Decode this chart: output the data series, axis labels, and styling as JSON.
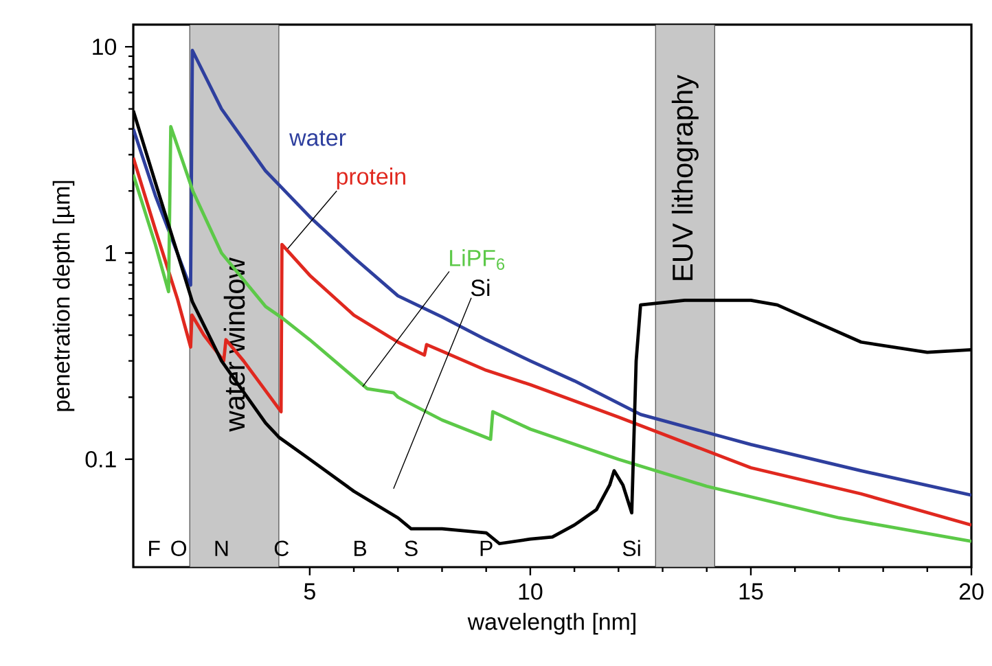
{
  "chart_data": {
    "type": "line",
    "xlabel": "wavelength [nm]",
    "ylabel": "penetration depth [µm]",
    "xlim": [
      1,
      20
    ],
    "xticks": [
      5,
      10,
      15,
      20
    ],
    "ylim": [
      0.03,
      12.8
    ],
    "yticks": [
      0.1,
      1,
      10
    ],
    "log": "y",
    "series": [
      {
        "name": "water",
        "color": "#2e3f9e",
        "x": [
          1,
          1.5,
          2.0,
          2.25,
          2.3,
          2.34,
          3,
          4,
          5,
          6,
          7,
          8,
          9,
          10,
          11,
          12.5,
          15,
          17.5,
          20
        ],
        "values": [
          4.0,
          1.9,
          1.0,
          0.72,
          0.7,
          9.6,
          5.0,
          2.5,
          1.5,
          0.95,
          0.62,
          0.49,
          0.38,
          0.3,
          0.24,
          0.165,
          0.118,
          0.088,
          0.067
        ]
      },
      {
        "name": "protein",
        "color": "#e0281f",
        "x": [
          1,
          1.5,
          2.0,
          2.3,
          2.33,
          2.6,
          3.05,
          3.1,
          3.5,
          4.35,
          4.37,
          5,
          6,
          7,
          7.6,
          7.65,
          9,
          10,
          12,
          15,
          17.5,
          20
        ],
        "values": [
          2.9,
          1.3,
          0.6,
          0.35,
          0.5,
          0.4,
          0.3,
          0.38,
          0.3,
          0.17,
          1.1,
          0.78,
          0.5,
          0.37,
          0.32,
          0.36,
          0.27,
          0.23,
          0.16,
          0.091,
          0.068,
          0.048
        ]
      },
      {
        "name": "LiPF$_{6}$",
        "color": "#5cc948",
        "x": [
          1,
          1.5,
          1.8,
          1.85,
          2.35,
          3,
          4,
          4.4,
          5,
          6,
          6.3,
          6.9,
          7,
          8,
          9.1,
          9.15,
          10,
          12,
          14,
          17,
          20
        ],
        "values": [
          2.4,
          1.1,
          0.65,
          4.1,
          2.0,
          1.0,
          0.55,
          0.48,
          0.38,
          0.25,
          0.22,
          0.21,
          0.2,
          0.155,
          0.125,
          0.17,
          0.14,
          0.1,
          0.074,
          0.052,
          0.04
        ]
      },
      {
        "name": "Si",
        "color": "#000000",
        "x": [
          1,
          1.5,
          2,
          2.34,
          3,
          4,
          4.3,
          5,
          6,
          7,
          7.3,
          8,
          8.5,
          9,
          9.3,
          10,
          10.5,
          11,
          11.5,
          11.8,
          11.9,
          12.1,
          12.3,
          12.4,
          12.5,
          13.5,
          15,
          15.6,
          16.5,
          17.5,
          19,
          20
        ],
        "values": [
          4.9,
          2.2,
          1.0,
          0.58,
          0.3,
          0.15,
          0.128,
          0.1,
          0.07,
          0.052,
          0.046,
          0.046,
          0.045,
          0.044,
          0.039,
          0.041,
          0.042,
          0.048,
          0.057,
          0.075,
          0.088,
          0.075,
          0.055,
          0.3,
          0.56,
          0.59,
          0.59,
          0.56,
          0.46,
          0.37,
          0.33,
          0.34
        ]
      }
    ],
    "bands": [
      {
        "axis": "x",
        "from": 2.28,
        "to": 4.3,
        "label": "water window"
      },
      {
        "axis": "x",
        "from": 12.84,
        "to": 14.18,
        "label": "EUV lithography"
      }
    ],
    "annotations": [
      "F",
      "O",
      "N",
      "C",
      "B",
      "S",
      "P",
      "Si"
    ]
  }
}
